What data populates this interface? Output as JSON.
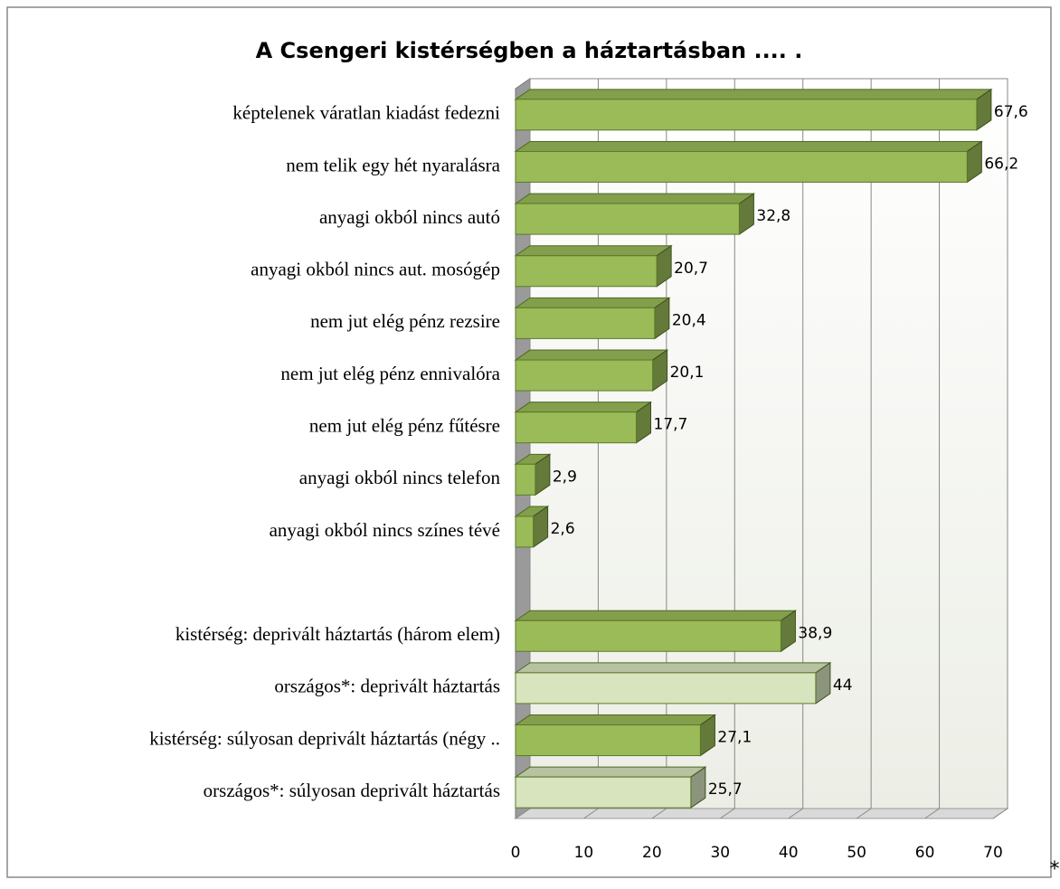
{
  "chart_data": {
    "type": "bar3d_horizontal",
    "title": "A Csengeri kistérségben a háztartásban .... .",
    "categories": [
      "képtelenek váratlan kiadást fedezni",
      "nem telik egy hét nyaralásra",
      "anyagi okból nincs autó",
      "anyagi okból nincs aut. mosógép",
      "nem jut elég pénz rezsire",
      "nem jut elég pénz ennivalóra",
      "nem jut elég pénz fűtésre",
      "anyagi okból nincs telefon",
      "anyagi okból nincs színes tévé",
      null,
      "kistérség: deprivált háztartás (három elem)",
      "országos*: deprivált háztartás",
      "kistérség: súlyosan deprivált háztartás (négy ..",
      "országos*: súlyosan deprivált háztartás"
    ],
    "values": [
      67.6,
      66.2,
      32.8,
      20.7,
      20.4,
      20.1,
      17.7,
      2.9,
      2.6,
      null,
      38.9,
      44,
      27.1,
      25.7
    ],
    "value_labels": [
      "67,6",
      "66,2",
      "32,8",
      "20,7",
      "20,4",
      "20,1",
      "17,7",
      "2,9",
      "2,6",
      null,
      "38,9",
      "44",
      "27,1",
      "25,7"
    ],
    "colors": [
      "#9bbb59",
      "#9bbb59",
      "#9bbb59",
      "#9bbb59",
      "#9bbb59",
      "#9bbb59",
      "#9bbb59",
      "#9bbb59",
      "#9bbb59",
      null,
      "#9bbb59",
      "#d7e4bd",
      "#9bbb59",
      "#d7e4bd"
    ],
    "xlim": [
      0,
      70
    ],
    "xticks": [
      0,
      10,
      20,
      30,
      40,
      50,
      60,
      70
    ],
    "grid": true,
    "annotation": "*"
  }
}
